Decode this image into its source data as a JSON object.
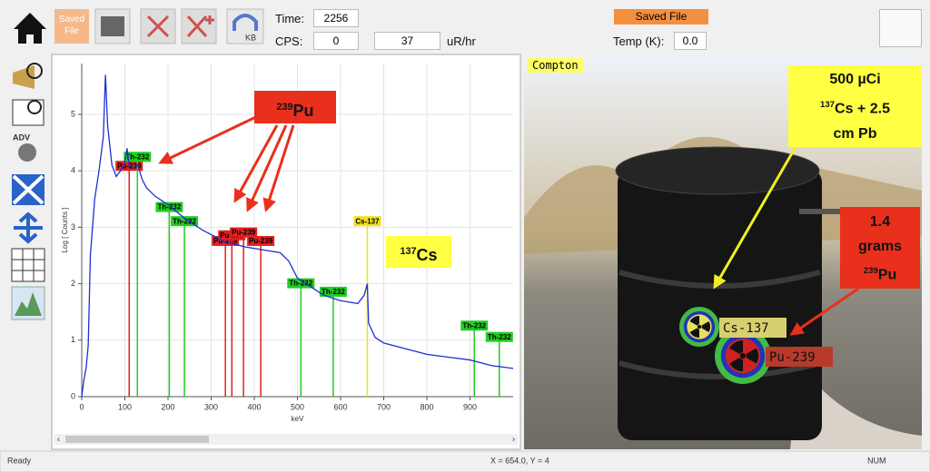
{
  "toolbar": {
    "saved_button": "Saved File",
    "kb_icon": "KB",
    "time_label": "Time:",
    "time_value": "2256",
    "cps_label": "CPS:",
    "cps_value": "0",
    "dose_value": "37",
    "dose_unit": "uR/hr",
    "status_badge": "Saved File",
    "temp_label": "Temp (K):",
    "temp_value": "0.0"
  },
  "sidebar": {
    "adv_icon": "ADV"
  },
  "chart_data": {
    "type": "line",
    "y_label": "Log [ Counts ]",
    "x_label": "keV",
    "x": [
      0,
      5,
      10,
      15,
      20,
      25,
      30,
      40,
      50,
      55,
      60,
      70,
      80,
      90,
      100,
      105,
      110,
      120,
      130,
      140,
      150,
      170,
      200,
      240,
      280,
      330,
      380,
      420,
      460,
      480,
      500,
      530,
      560,
      600,
      640,
      655,
      662,
      665,
      680,
      700,
      750,
      800,
      850,
      900,
      950,
      1000
    ],
    "series": [
      {
        "color": "#1f2fd0",
        "values": [
          0,
          0.3,
          0.5,
          0.9,
          2.5,
          3.0,
          3.5,
          4.0,
          4.6,
          5.7,
          4.8,
          4.1,
          3.9,
          4.0,
          4.15,
          4.4,
          4.1,
          4.05,
          4.1,
          3.85,
          3.7,
          3.55,
          3.4,
          3.15,
          2.95,
          2.75,
          2.65,
          2.6,
          2.55,
          2.4,
          2.1,
          1.95,
          1.8,
          1.7,
          1.65,
          1.8,
          2.0,
          1.3,
          1.05,
          0.95,
          0.85,
          0.75,
          0.7,
          0.65,
          0.55,
          0.5
        ]
      }
    ],
    "xlim": [
      0,
      1000
    ],
    "ylim": [
      0,
      5.9
    ],
    "xticks": [
      0,
      100,
      200,
      300,
      400,
      500,
      600,
      700,
      800,
      900
    ],
    "yticks": [
      0,
      1,
      2,
      3,
      4,
      5
    ],
    "grid": true,
    "peaks": [
      {
        "label": "Pu-239",
        "energy": 110,
        "height": 4.08,
        "color": "#e02020"
      },
      {
        "label": "Th-232",
        "energy": 129,
        "height": 4.24,
        "color": "#22cc22"
      },
      {
        "label": "Th-232",
        "energy": 203,
        "height": 3.35,
        "color": "#22cc22"
      },
      {
        "label": "Th-232",
        "energy": 238,
        "height": 3.1,
        "color": "#22cc22"
      },
      {
        "label": "Pu-239",
        "energy": 333,
        "height": 2.75,
        "color": "#e02020"
      },
      {
        "label": "Pu-239",
        "energy": 348,
        "height": 2.85,
        "color": "#e02020"
      },
      {
        "label": "Pu-239",
        "energy": 375,
        "height": 2.9,
        "color": "#e02020"
      },
      {
        "label": "Pu-239",
        "energy": 415,
        "height": 2.75,
        "color": "#e02020"
      },
      {
        "label": "Th-232",
        "energy": 508,
        "height": 2.0,
        "color": "#22cc22"
      },
      {
        "label": "Th-232",
        "energy": 583,
        "height": 1.85,
        "color": "#22cc22"
      },
      {
        "label": "Cs-137",
        "energy": 662,
        "height": 3.1,
        "color": "#f0e020"
      },
      {
        "label": "Th-232",
        "energy": 910,
        "height": 1.25,
        "color": "#22cc22"
      },
      {
        "label": "Th-232",
        "energy": 968,
        "height": 1.05,
        "color": "#22cc22"
      }
    ],
    "pu_callout": {
      "sup": "239",
      "text": "Pu"
    },
    "cs_callout": {
      "sup": "137",
      "text": "Cs"
    }
  },
  "image_panel": {
    "title": "Compton",
    "markers": [
      {
        "label": "Cs-137"
      },
      {
        "label": "Pu-239"
      }
    ],
    "source_callout": {
      "line1": "500 µCi",
      "line2_sup": "137",
      "line2": "Cs + 2.5",
      "line3": "cm Pb"
    },
    "mass_callout": {
      "line1": "1.4",
      "line2": "grams",
      "line3_sup": "239",
      "line3": "Pu"
    }
  },
  "status_bar": {
    "left": "Ready",
    "coords": "X = 654.0, Y = 4",
    "right": "NUM"
  }
}
